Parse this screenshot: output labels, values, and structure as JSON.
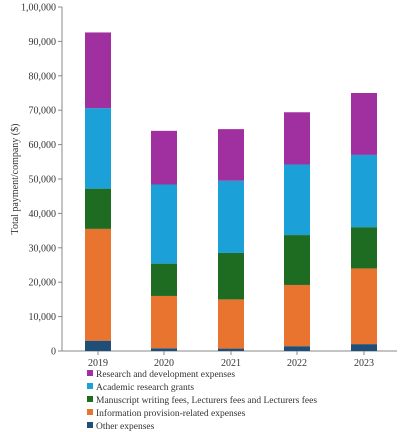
{
  "chart_data": {
    "type": "bar",
    "stacked": true,
    "categories": [
      "2019",
      "2020",
      "2021",
      "2022",
      "2023"
    ],
    "ylabel": "Total payment/company ($)",
    "ylim": [
      0,
      100000
    ],
    "yticks": [
      0,
      10000,
      20000,
      30000,
      40000,
      50000,
      60000,
      70000,
      80000,
      90000,
      100000
    ],
    "ytick_labels": [
      "0",
      "10,000",
      "20,000",
      "30,000",
      "40,000",
      "50,000",
      "60,000",
      "70,000",
      "80,000",
      "90,000",
      "1,00,000"
    ],
    "grid": false,
    "legend_position": "bottom",
    "series": [
      {
        "name": "Other expenses",
        "color": "#1f4e79",
        "values": [
          3000,
          800,
          700,
          1400,
          2000
        ]
      },
      {
        "name": "Information provision-related expenses",
        "color": "#e8742f",
        "values": [
          32500,
          15200,
          14300,
          17800,
          22000
        ]
      },
      {
        "name": "Manuscript writing fees, Lecturers fees and Lecturers fees",
        "color": "#1e6b22",
        "values": [
          11700,
          9400,
          13500,
          14500,
          12000
        ]
      },
      {
        "name": "Academic research grants",
        "color": "#1ba1d8",
        "values": [
          23400,
          23000,
          21000,
          20500,
          21000
        ]
      },
      {
        "name": "Research and development expenses",
        "color": "#a0309f",
        "values": [
          22000,
          15600,
          15000,
          15200,
          18000
        ]
      }
    ]
  }
}
